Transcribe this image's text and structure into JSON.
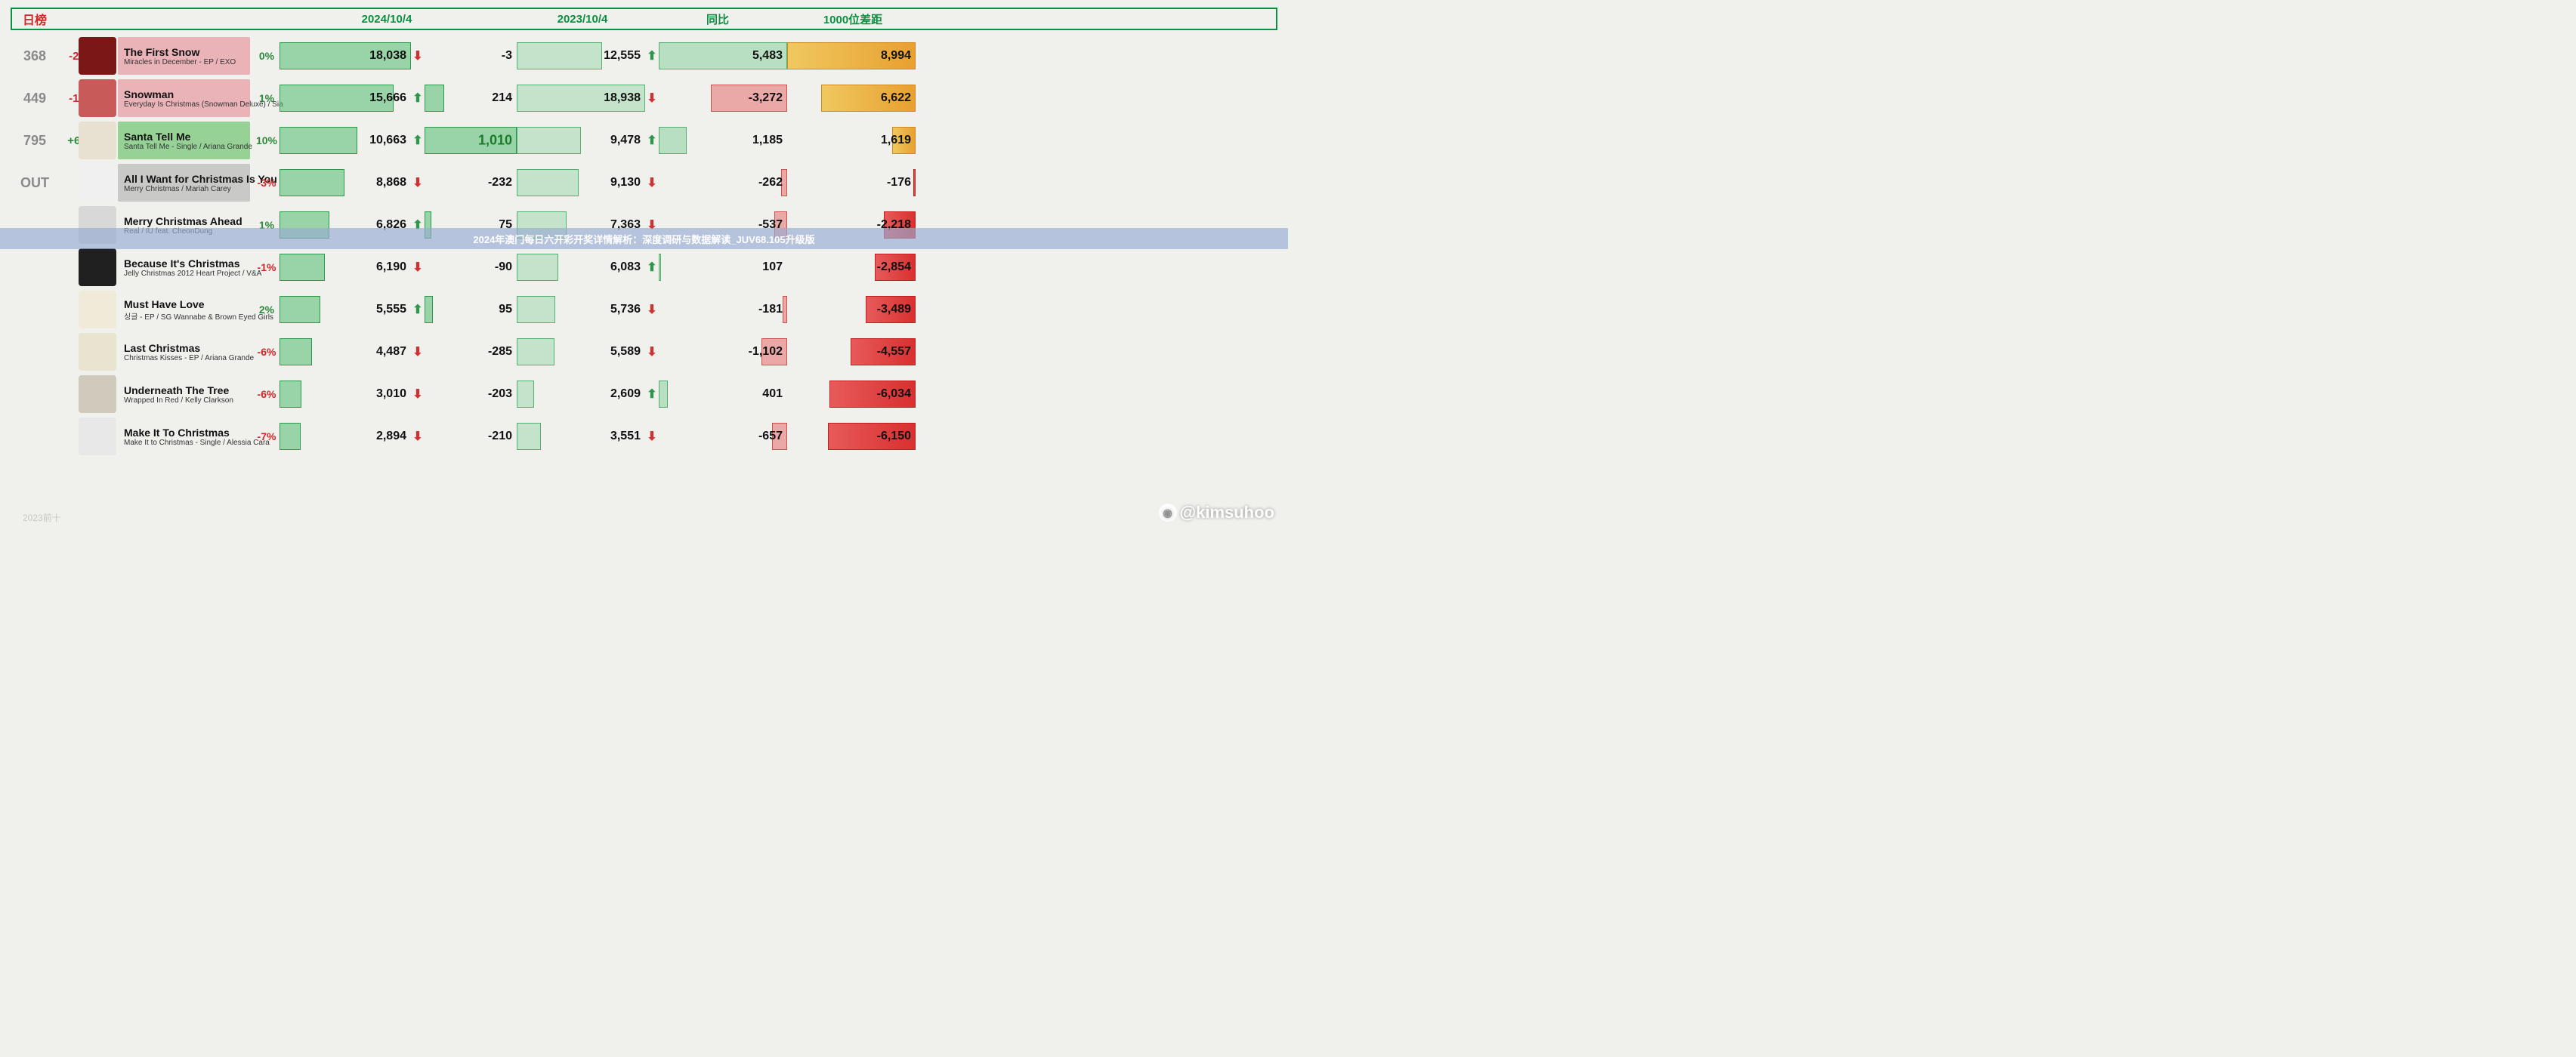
{
  "header": {
    "daily": "日榜",
    "col_2024": "2024/10/4",
    "col_2023": "2023/10/4",
    "col_diff": "同比",
    "col_1000": "1000位差距"
  },
  "colors": {
    "accent_green": "#0a9040",
    "accent_red": "#d02828",
    "row_pink": "rgba(230,130,140,0.55)",
    "row_green": "rgba(120,200,120,0.75)",
    "row_gray": "rgba(170,170,170,0.55)",
    "bar2024_fill": "rgba(80,190,110,0.55)",
    "bar2023_fill": "rgba(140,210,160,0.45)",
    "diffpos_fill": "rgba(140,210,160,0.55)",
    "diffneg_fill": "rgba(230,110,110,0.55)",
    "g1000pos_a": "#f0c860",
    "g1000pos_b": "#e8a030",
    "g1000neg_a": "#e85a5a",
    "g1000neg_b": "#d83030"
  },
  "scales": {
    "v2024_max": 18038,
    "v2024_width": 174,
    "delta_max": 1010,
    "delta_width": 122,
    "v2023_max": 18938,
    "v2023_width": 170,
    "diff_max": 5483,
    "diff_width": 170,
    "g1000_max": 8994,
    "g1000_width": 170
  },
  "overlay_text": "2024年澳门每日六开彩开奖详情解析：深度调研与数据解读_JUV68.105升级版",
  "watermark": "@kimsuhoo",
  "faded_watermark": "2023前十",
  "rows": [
    {
      "rank": "368",
      "rank_delta": "-25",
      "rank_delta_sign": "neg",
      "title": "The First Snow",
      "subtitle": "Miracles in December - EP / EXO",
      "row_bg": "pink",
      "thumb_bg": "#7a1818",
      "pct": "0%",
      "pct_sign": "pos",
      "v2024": 18038,
      "v2024_txt": "18,038",
      "delta_dir": "dn",
      "delta": -3,
      "delta_txt": "-3",
      "delta_hl": false,
      "v2023": 12555,
      "v2023_txt": "12,555",
      "diff_dir": "up",
      "diff": 5483,
      "diff_txt": "5,483",
      "g1000": 8994,
      "g1000_txt": "8,994"
    },
    {
      "rank": "449",
      "rank_delta": "-15",
      "rank_delta_sign": "neg",
      "title": "Snowman",
      "subtitle": "Everyday Is Christmas (Snowman Deluxe) / Sia",
      "row_bg": "pink",
      "thumb_bg": "#c85a5a",
      "pct": "1%",
      "pct_sign": "pos",
      "v2024": 15666,
      "v2024_txt": "15,666",
      "delta_dir": "up",
      "delta": 214,
      "delta_txt": "214",
      "delta_hl": false,
      "v2023": 18938,
      "v2023_txt": "18,938",
      "diff_dir": "dn",
      "diff": -3272,
      "diff_txt": "-3,272",
      "g1000": 6622,
      "g1000_txt": "6,622"
    },
    {
      "rank": "795",
      "rank_delta": "+63",
      "rank_delta_sign": "pos",
      "title": "Santa Tell Me",
      "subtitle": "Santa Tell Me - Single / Ariana Grande",
      "row_bg": "green",
      "thumb_bg": "#e8e0d0",
      "pct": "10%",
      "pct_sign": "pos",
      "v2024": 10663,
      "v2024_txt": "10,663",
      "delta_dir": "up",
      "delta": 1010,
      "delta_txt": "1,010",
      "delta_hl": true,
      "v2023": 9478,
      "v2023_txt": "9,478",
      "diff_dir": "up",
      "diff": 1185,
      "diff_txt": "1,185",
      "g1000": 1619,
      "g1000_txt": "1,619"
    },
    {
      "rank": "OUT",
      "rank_delta": "",
      "rank_delta_sign": "",
      "title": "All I Want for Christmas Is You",
      "subtitle": "Merry Christmas / Mariah Carey",
      "row_bg": "gray",
      "thumb_bg": "#f0f0f0",
      "pct": "-3%",
      "pct_sign": "neg",
      "v2024": 8868,
      "v2024_txt": "8,868",
      "delta_dir": "dn",
      "delta": -232,
      "delta_txt": "-232",
      "delta_hl": false,
      "v2023": 9130,
      "v2023_txt": "9,130",
      "diff_dir": "dn",
      "diff": -262,
      "diff_txt": "-262",
      "g1000": -176,
      "g1000_txt": "-176"
    },
    {
      "rank": "",
      "rank_delta": "",
      "rank_delta_sign": "",
      "title": "Merry Christmas Ahead",
      "subtitle": "Real / IU feat. CheonDung",
      "row_bg": "",
      "thumb_bg": "#d8d8d8",
      "pct": "1%",
      "pct_sign": "pos",
      "v2024": 6826,
      "v2024_txt": "6,826",
      "delta_dir": "up",
      "delta": 75,
      "delta_txt": "75",
      "delta_hl": false,
      "v2023": 7363,
      "v2023_txt": "7,363",
      "diff_dir": "dn",
      "diff": -537,
      "diff_txt": "-537",
      "g1000": -2218,
      "g1000_txt": "-2,218"
    },
    {
      "rank": "",
      "rank_delta": "",
      "rank_delta_sign": "",
      "title": "Because It's Christmas",
      "subtitle": "Jelly Christmas 2012 Heart Project  / V&A",
      "row_bg": "",
      "thumb_bg": "#202020",
      "pct": "-1%",
      "pct_sign": "neg",
      "v2024": 6190,
      "v2024_txt": "6,190",
      "delta_dir": "dn",
      "delta": -90,
      "delta_txt": "-90",
      "delta_hl": false,
      "v2023": 6083,
      "v2023_txt": "6,083",
      "diff_dir": "up",
      "diff": 107,
      "diff_txt": "107",
      "g1000": -2854,
      "g1000_txt": "-2,854"
    },
    {
      "rank": "",
      "rank_delta": "",
      "rank_delta_sign": "",
      "title": "Must Have Love",
      "subtitle": "싱글 - EP / SG Wannabe & Brown Eyed Girls",
      "row_bg": "",
      "thumb_bg": "#f0ead8",
      "pct": "2%",
      "pct_sign": "pos",
      "v2024": 5555,
      "v2024_txt": "5,555",
      "delta_dir": "up",
      "delta": 95,
      "delta_txt": "95",
      "delta_hl": false,
      "v2023": 5736,
      "v2023_txt": "5,736",
      "diff_dir": "dn",
      "diff": -181,
      "diff_txt": "-181",
      "g1000": -3489,
      "g1000_txt": "-3,489"
    },
    {
      "rank": "",
      "rank_delta": "",
      "rank_delta_sign": "",
      "title": "Last Christmas",
      "subtitle": "Christmas Kisses - EP / Ariana Grande",
      "row_bg": "",
      "thumb_bg": "#e8e4d0",
      "pct": "-6%",
      "pct_sign": "neg",
      "v2024": 4487,
      "v2024_txt": "4,487",
      "delta_dir": "dn",
      "delta": -285,
      "delta_txt": "-285",
      "delta_hl": false,
      "v2023": 5589,
      "v2023_txt": "5,589",
      "diff_dir": "dn",
      "diff": -1102,
      "diff_txt": "-1,102",
      "g1000": -4557,
      "g1000_txt": "-4,557"
    },
    {
      "rank": "",
      "rank_delta": "",
      "rank_delta_sign": "",
      "title": "Underneath The Tree",
      "subtitle": "Wrapped In Red / Kelly Clarkson",
      "row_bg": "",
      "thumb_bg": "#d0cabc",
      "pct": "-6%",
      "pct_sign": "neg",
      "v2024": 3010,
      "v2024_txt": "3,010",
      "delta_dir": "dn",
      "delta": -203,
      "delta_txt": "-203",
      "delta_hl": false,
      "v2023": 2609,
      "v2023_txt": "2,609",
      "diff_dir": "up",
      "diff": 401,
      "diff_txt": "401",
      "g1000": -6034,
      "g1000_txt": "-6,034"
    },
    {
      "rank": "",
      "rank_delta": "",
      "rank_delta_sign": "",
      "title": "Make It To Christmas",
      "subtitle": "Make It to Christmas - Single / Alessia Cara",
      "row_bg": "",
      "thumb_bg": "#e8e8e8",
      "pct": "-7%",
      "pct_sign": "neg",
      "v2024": 2894,
      "v2024_txt": "2,894",
      "delta_dir": "dn",
      "delta": -210,
      "delta_txt": "-210",
      "delta_hl": false,
      "v2023": 3551,
      "v2023_txt": "3,551",
      "diff_dir": "dn",
      "diff": -657,
      "diff_txt": "-657",
      "g1000": -6150,
      "g1000_txt": "-6,150"
    }
  ]
}
